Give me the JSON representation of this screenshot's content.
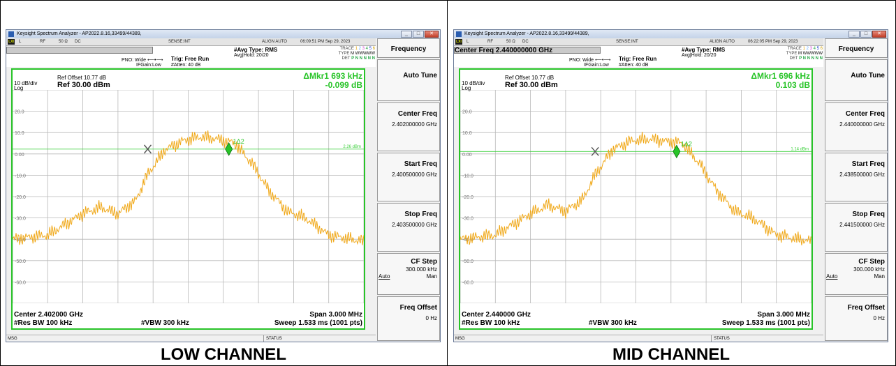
{
  "panels": [
    {
      "window_title": "Keysight Spectrum Analyzer - AP2022.8.16,33499/44389,",
      "status_row": {
        "lxi": "LXI",
        "mode_l": "L",
        "rf": "RF",
        "ohm": "50 Ω",
        "dc": "DC",
        "sense": "SENSE:INT",
        "align": "ALIGN AUTO",
        "time": "06:09:51 PM Sep 29, 2023"
      },
      "center_freq_bar": "",
      "info": {
        "pno": "PNO: Wide",
        "ifgain": "IFGain:Low",
        "trig": "Trig: Free Run",
        "atten": "#Atten: 40 dB",
        "avg_type": "#Avg Type: RMS",
        "avg_hold": "Avg|Hold: 20/20",
        "trace_label": "TRACE",
        "trace_digits": [
          "1",
          "2",
          "3",
          "4",
          "5",
          "6"
        ],
        "type_label": "TYPE",
        "type_val": "M WWWWW",
        "det_label": "DET",
        "det_val": "P N N N N N"
      },
      "ref_offset": "Ref Offset 10.77 dB",
      "scale": "10 dB/div",
      "log": "Log",
      "ref_level": "Ref 30.00 dBm",
      "marker_line1": "ΔMkr1 693 kHz",
      "marker_line2": "-0.099 dB",
      "y_ticks": [
        "20.0",
        "10.0",
        "0.00",
        "-10.0",
        "-20.0",
        "-30.0",
        "-40.0",
        "-50.0",
        "-60.0"
      ],
      "display_line_label": "2.26 dBm",
      "marker_label": "1Δ2",
      "center": "Center 2.402000 GHz",
      "span": "Span 3.000 MHz",
      "res_bw": "#Res BW 100 kHz",
      "vbw": "#VBW 300 kHz",
      "sweep": "Sweep  1.533 ms (1001 pts)",
      "msg": "MSG",
      "status": "STATUS",
      "softkeys": {
        "menu_title": "Frequency",
        "auto_tune": "Auto Tune",
        "center_freq": "Center Freq",
        "center_freq_val": "2.402000000 GHz",
        "start_freq": "Start Freq",
        "start_freq_val": "2.400500000 GHz",
        "stop_freq": "Stop Freq",
        "stop_freq_val": "2.403500000 GHz",
        "cf_step": "CF Step",
        "cf_step_val": "300.000 kHz",
        "auto": "Auto",
        "man": "Man",
        "freq_offset": "Freq Offset",
        "freq_offset_val": "0 Hz"
      },
      "caption": "LOW CHANNEL",
      "trace_color": "#f0a818",
      "display_line_dbm": 2.26,
      "marker_center_offset_khz": -346,
      "marker_delta_khz": 693,
      "chart_data": {
        "type": "line",
        "x_unit": "GHz",
        "y_unit": "dBm",
        "xlim": [
          2.4005,
          2.4035
        ],
        "ylim": [
          -70,
          30
        ],
        "x": [
          2.4005,
          2.4008,
          2.4011,
          2.40125,
          2.4014,
          2.40155,
          2.40165,
          2.4018,
          2.40195,
          2.4021,
          2.40225,
          2.4024,
          2.40255,
          2.4027,
          2.40285,
          2.403,
          2.4032,
          2.4035
        ],
        "y": [
          -40,
          -38,
          -28,
          -25,
          -28,
          -22,
          -10,
          2,
          6,
          8,
          7,
          5,
          -5,
          -18,
          -27,
          -30,
          -38,
          -41
        ]
      }
    },
    {
      "window_title": "Keysight Spectrum Analyzer - AP2022.8.16,33499/44389,",
      "status_row": {
        "lxi": "LXI",
        "mode_l": "L",
        "rf": "RF",
        "ohm": "50 Ω",
        "dc": "DC",
        "sense": "SENSE:INT",
        "align": "ALIGN AUTO",
        "time": "06:22:05 PM Sep 29, 2023"
      },
      "center_freq_bar": "Center Freq 2.440000000 GHz",
      "info": {
        "pno": "PNO: Wide",
        "ifgain": "IFGain:Low",
        "trig": "Trig: Free Run",
        "atten": "#Atten: 40 dB",
        "avg_type": "#Avg Type: RMS",
        "avg_hold": "Avg|Hold: 20/20",
        "trace_label": "TRACE",
        "trace_digits": [
          "1",
          "2",
          "3",
          "4",
          "5",
          "6"
        ],
        "type_label": "TYPE",
        "type_val": "M WWWWW",
        "det_label": "DET",
        "det_val": "P N N N N N"
      },
      "ref_offset": "Ref Offset 10.77 dB",
      "scale": "10 dB/div",
      "log": "Log",
      "ref_level": "Ref 30.00 dBm",
      "marker_line1": "ΔMkr1 696 kHz",
      "marker_line2": "0.103 dB",
      "y_ticks": [
        "20.0",
        "10.0",
        "0.00",
        "-10.0",
        "-20.0",
        "-30.0",
        "-40.0",
        "-50.0",
        "-60.0"
      ],
      "display_line_label": "1.14 dBm",
      "marker_label": "1Δ2",
      "center": "Center 2.440000 GHz",
      "span": "Span 3.000 MHz",
      "res_bw": "#Res BW 100 kHz",
      "vbw": "#VBW 300 kHz",
      "sweep": "Sweep  1.533 ms (1001 pts)",
      "msg": "MSG",
      "status": "STATUS",
      "softkeys": {
        "menu_title": "Frequency",
        "auto_tune": "Auto Tune",
        "center_freq": "Center Freq",
        "center_freq_val": "2.440000000 GHz",
        "start_freq": "Start Freq",
        "start_freq_val": "2.438500000 GHz",
        "stop_freq": "Stop Freq",
        "stop_freq_val": "2.441500000 GHz",
        "cf_step": "CF Step",
        "cf_step_val": "300.000 kHz",
        "auto": "Auto",
        "man": "Man",
        "freq_offset": "Freq Offset",
        "freq_offset_val": "0 Hz"
      },
      "caption": "MID CHANNEL",
      "trace_color": "#f0a818",
      "display_line_dbm": 1.14,
      "marker_center_offset_khz": -348,
      "marker_delta_khz": 696,
      "chart_data": {
        "type": "line",
        "x_unit": "GHz",
        "y_unit": "dBm",
        "xlim": [
          2.4385,
          2.4415
        ],
        "ylim": [
          -70,
          30
        ],
        "x": [
          2.4385,
          2.4388,
          2.4391,
          2.43925,
          2.4394,
          2.43955,
          2.43965,
          2.4398,
          2.43995,
          2.4401,
          2.44025,
          2.4404,
          2.44055,
          2.4407,
          2.44085,
          2.441,
          2.4412,
          2.4415
        ],
        "y": [
          -40,
          -38,
          -28,
          -24,
          -27,
          -21,
          -10,
          2,
          6,
          7,
          6,
          5,
          -5,
          -18,
          -27,
          -30,
          -38,
          -41
        ]
      }
    }
  ]
}
